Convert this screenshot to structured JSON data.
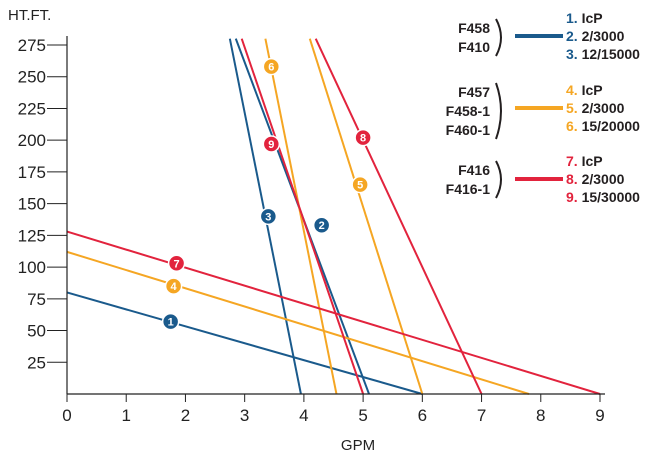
{
  "chart_data": {
    "type": "line",
    "xlabel": "GPM",
    "ylabel": "HT.FT.",
    "xlim": [
      0,
      9
    ],
    "ylim": [
      0,
      275
    ],
    "x_ticks": [
      "0",
      "1",
      "2",
      "3",
      "4",
      "5",
      "6",
      "7",
      "8",
      "9"
    ],
    "y_ticks": [
      "25",
      "50",
      "75",
      "100",
      "125",
      "150",
      "175",
      "200",
      "225",
      "250",
      "275"
    ],
    "grid": false,
    "legend_position": "top-right",
    "series": [
      {
        "marker": "1",
        "label": "IcP",
        "group": 0,
        "points": [
          [
            0,
            80
          ],
          [
            6,
            0
          ]
        ],
        "marker_at": [
          1.75,
          57
        ]
      },
      {
        "marker": "2",
        "label": "2/3000",
        "group": 0,
        "points": [
          [
            2.85,
            280
          ],
          [
            5.1,
            0
          ]
        ],
        "marker_at": [
          4.3,
          133
        ]
      },
      {
        "marker": "3",
        "label": "12/15000",
        "group": 0,
        "points": [
          [
            2.75,
            280
          ],
          [
            3.95,
            0
          ]
        ],
        "marker_at": [
          3.4,
          140
        ]
      },
      {
        "marker": "4",
        "label": "IcP",
        "group": 1,
        "points": [
          [
            0,
            112
          ],
          [
            7.8,
            0
          ]
        ],
        "marker_at": [
          1.8,
          85
        ]
      },
      {
        "marker": "5",
        "label": "2/3000",
        "group": 1,
        "points": [
          [
            4.1,
            280
          ],
          [
            6,
            0
          ]
        ],
        "marker_at": [
          4.95,
          165
        ]
      },
      {
        "marker": "6",
        "label": "15/20000",
        "group": 1,
        "points": [
          [
            3.35,
            280
          ],
          [
            4.55,
            0
          ]
        ],
        "marker_at": [
          3.45,
          258
        ]
      },
      {
        "marker": "7",
        "label": "IcP",
        "group": 2,
        "points": [
          [
            0,
            128
          ],
          [
            9,
            0
          ]
        ],
        "marker_at": [
          1.85,
          103
        ]
      },
      {
        "marker": "8",
        "label": "2/3000",
        "group": 2,
        "points": [
          [
            4.2,
            280
          ],
          [
            7,
            0
          ]
        ],
        "marker_at": [
          5,
          202
        ]
      },
      {
        "marker": "9",
        "label": "15/30000",
        "group": 2,
        "points": [
          [
            2.95,
            280
          ],
          [
            5,
            0
          ]
        ],
        "marker_at": [
          3.45,
          197
        ]
      }
    ],
    "legend_groups": [
      {
        "models": [
          "F458",
          "F410"
        ],
        "color": "#1a5a8c",
        "items": [
          "1. IcP",
          "2. 2/3000",
          "3. 12/15000"
        ]
      },
      {
        "models": [
          "F457",
          "F458-1",
          "F460-1"
        ],
        "color": "#f5a623",
        "items": [
          "4. IcP",
          "5. 2/3000",
          "6. 15/20000"
        ]
      },
      {
        "models": [
          "F416",
          "F416-1"
        ],
        "color": "#e2233d",
        "items": [
          "7. IcP",
          "8. 2/3000",
          "9. 15/30000"
        ]
      }
    ]
  }
}
